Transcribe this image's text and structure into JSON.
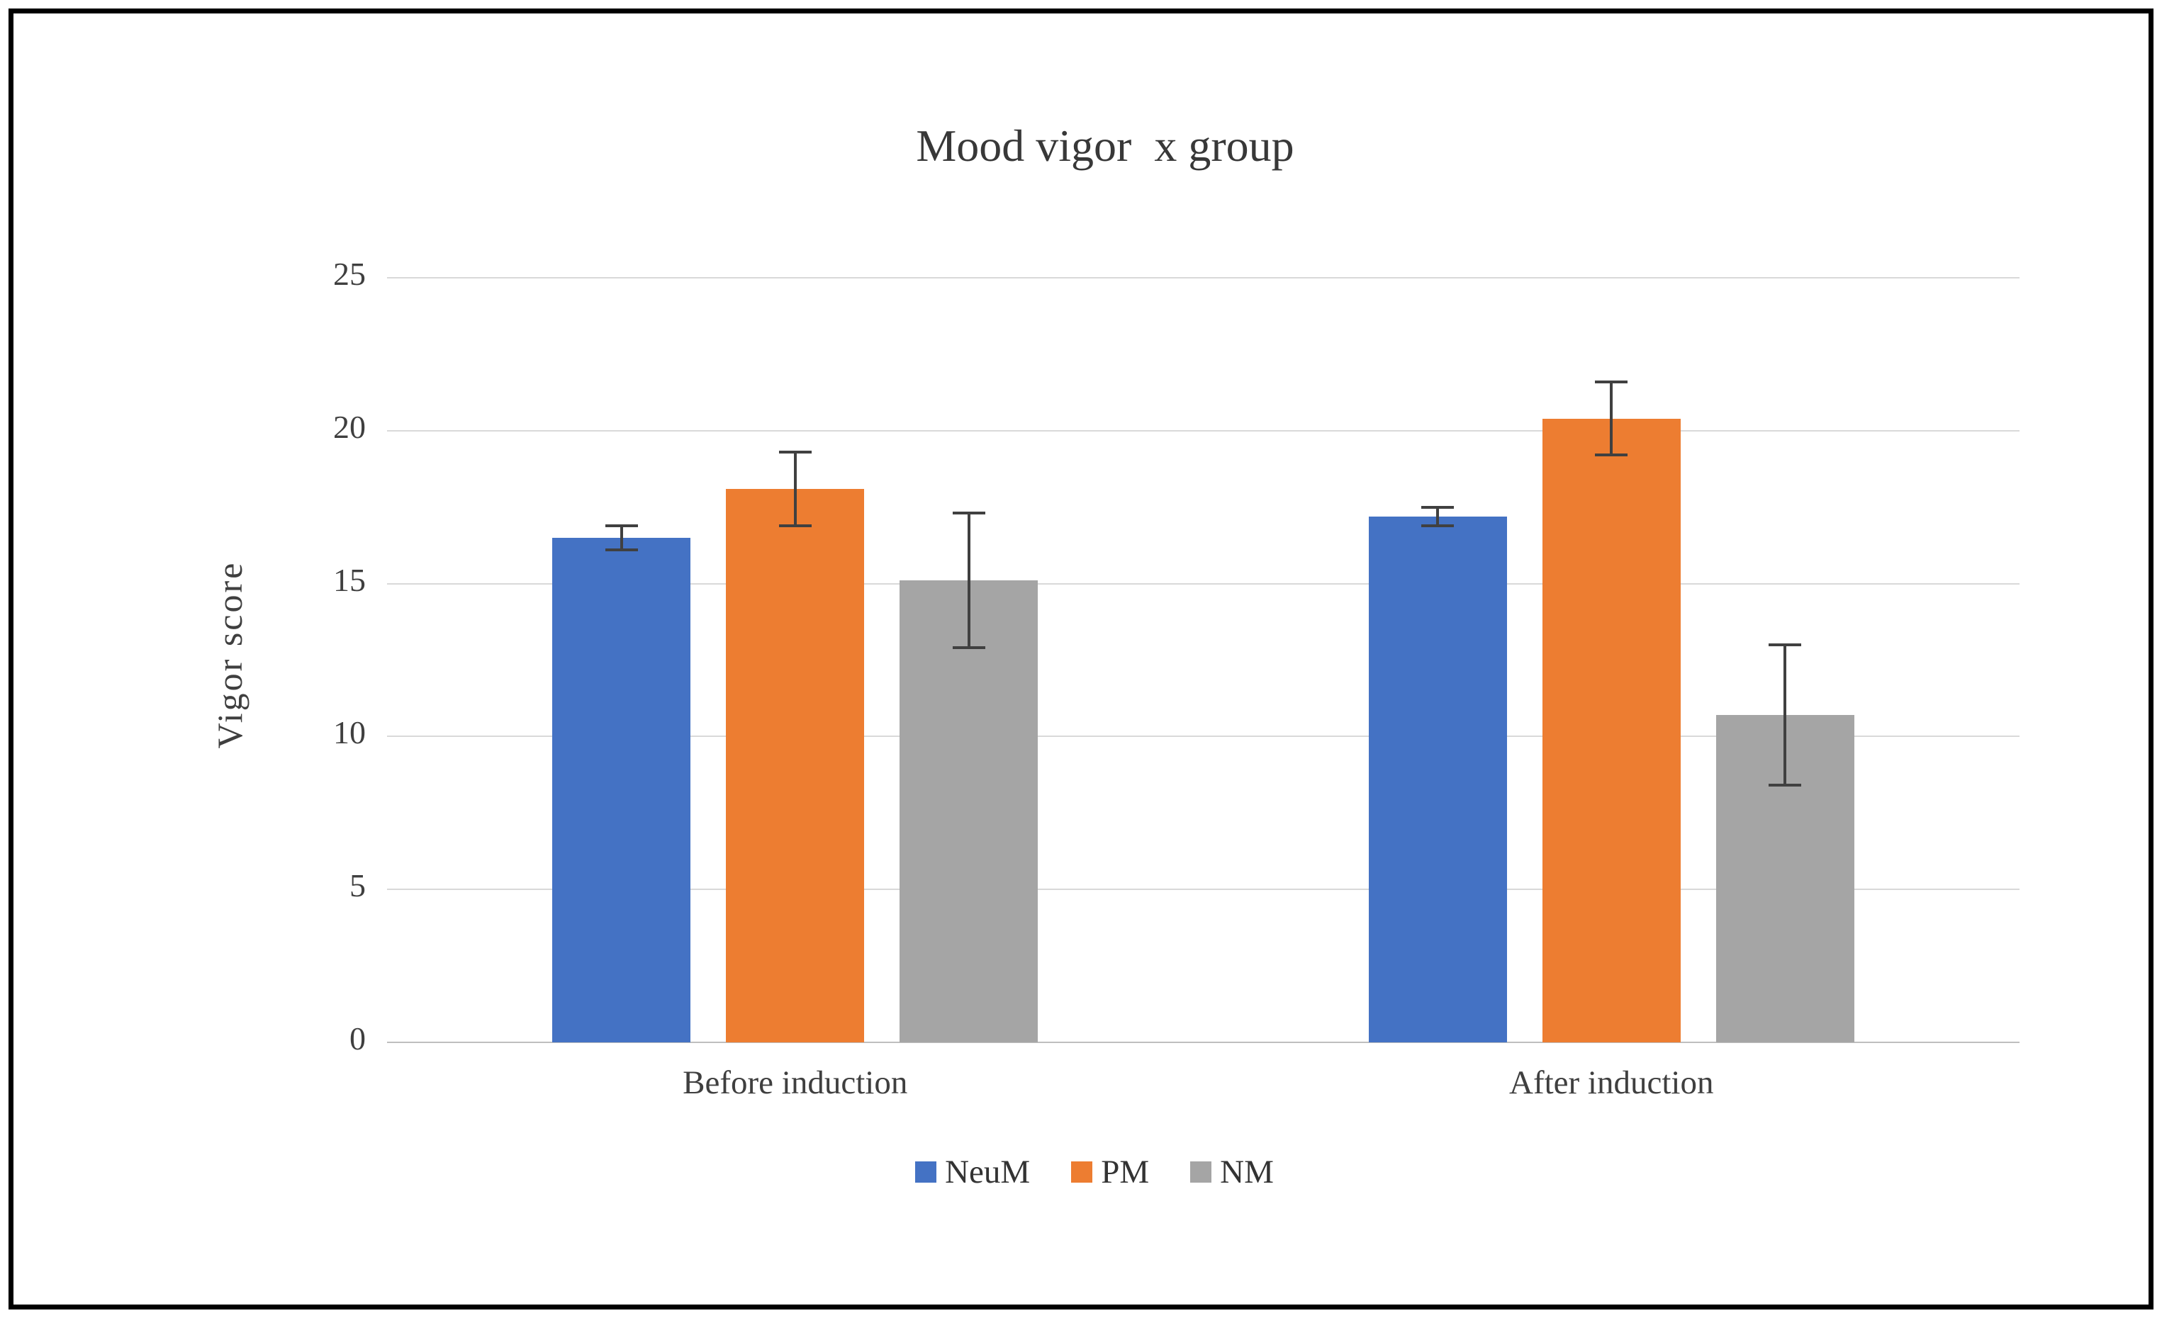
{
  "frame": {
    "border_color": "#000000",
    "background_color": "#ffffff"
  },
  "chart_data": {
    "type": "bar",
    "title": "Mood vigor  x group",
    "xlabel": "",
    "ylabel": "Vigor score",
    "categories": [
      "Before induction",
      "After induction"
    ],
    "series": [
      {
        "name": "NeuM",
        "color": "#4472C4",
        "values": [
          16.5,
          17.2
        ],
        "errors": [
          0.4,
          0.3
        ]
      },
      {
        "name": "PM",
        "color": "#ED7D31",
        "values": [
          18.1,
          20.4
        ],
        "errors": [
          1.2,
          1.2
        ]
      },
      {
        "name": "NM",
        "color": "#A5A5A5",
        "values": [
          15.1,
          10.7
        ],
        "errors": [
          2.2,
          2.3
        ]
      }
    ],
    "ylim": [
      0,
      25
    ],
    "yticks": [
      0,
      5,
      10,
      15,
      20,
      25
    ],
    "grid": "horizontal",
    "gridline_color": "#d9d9d9",
    "axis_line_color": "#bfbfbf",
    "error_bar_color": "#404040",
    "text_color": "#3f3f3f",
    "legend_position": "bottom"
  }
}
